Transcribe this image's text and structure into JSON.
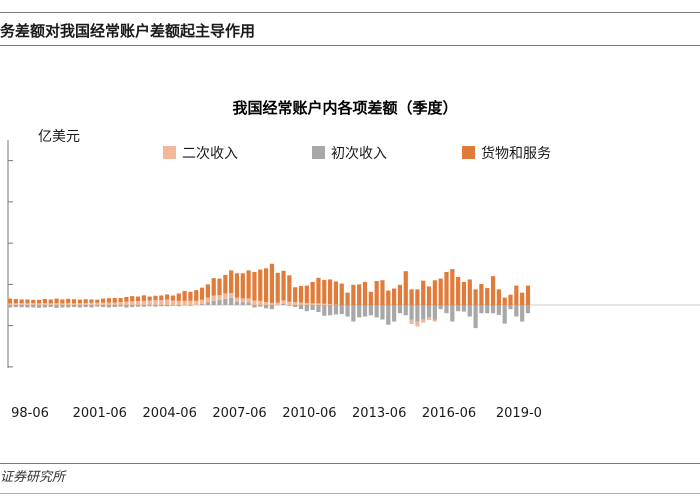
{
  "header": {
    "subtitle": "务差额对我国经常账户差额起主导作用"
  },
  "footer": {
    "source": "证券研究所"
  },
  "colors": {
    "secondary": "#f3b89a",
    "primary": "#a8a8a8",
    "goods": "#e07b39",
    "axis": "#7a7a7a"
  },
  "chart_data": {
    "type": "bar",
    "stacked": true,
    "title": "我国经常账户内各项差额（季度）",
    "ylabel": "亿美元",
    "xlabel": "",
    "ylim": [
      -1500,
      4000
    ],
    "grid": false,
    "legend": "top",
    "series_labels": [
      "二次收入",
      "初次收入",
      "货物和服务"
    ],
    "x_tick_labels": [
      "98-06",
      "2001-06",
      "2004-06",
      "2007-06",
      "2010-06",
      "2013-06",
      "2016-06",
      "2019-0"
    ],
    "x_tick_quarters": [
      0,
      12,
      24,
      36,
      48,
      60,
      72,
      84
    ],
    "first_quarter": "1998-06",
    "goods": [
      115,
      105,
      90,
      95,
      80,
      85,
      100,
      95,
      110,
      95,
      105,
      100,
      85,
      90,
      80,
      75,
      95,
      105,
      110,
      100,
      115,
      125,
      110,
      135,
      95,
      105,
      110,
      125,
      120,
      180,
      240,
      220,
      260,
      290,
      320,
      420,
      400,
      450,
      550,
      590,
      610,
      680,
      690,
      760,
      820,
      950,
      720,
      720,
      640,
      360,
      400,
      420,
      520,
      620,
      580,
      600,
      560,
      520,
      300,
      490,
      500,
      560,
      320,
      580,
      600,
      350,
      400,
      490,
      820,
      380,
      380,
      590,
      450,
      600,
      640,
      800,
      870,
      680,
      560,
      620,
      380,
      510,
      410,
      700,
      380,
      180,
      250,
      470,
      300,
      470
    ],
    "secondary": [
      40,
      40,
      45,
      40,
      45,
      40,
      45,
      40,
      45,
      40,
      45,
      40,
      45,
      50,
      55,
      55,
      60,
      60,
      60,
      70,
      80,
      90,
      95,
      100,
      110,
      120,
      120,
      130,
      110,
      100,
      100,
      100,
      100,
      100,
      120,
      130,
      120,
      130,
      120,
      100,
      90,
      100,
      110,
      100,
      70,
      50,
      60,
      80,
      80,
      70,
      60,
      50,
      40,
      40,
      30,
      20,
      10,
      0,
      0,
      0,
      0,
      0,
      0,
      0,
      0,
      0,
      0,
      0,
      0,
      -100,
      -120,
      -80,
      -60,
      -40,
      0,
      0,
      0,
      0,
      0,
      0,
      0,
      0,
      0,
      0,
      0,
      0,
      0,
      0,
      0,
      0
    ],
    "primary": [
      -60,
      -50,
      -55,
      -60,
      -60,
      -70,
      -60,
      -50,
      -70,
      -60,
      -60,
      -50,
      -60,
      -50,
      -60,
      -40,
      -50,
      -60,
      -50,
      -40,
      -60,
      -50,
      -40,
      -40,
      -30,
      -40,
      -30,
      -30,
      -20,
      -30,
      -10,
      -20,
      0,
      30,
      60,
      100,
      120,
      150,
      170,
      80,
      70,
      60,
      -60,
      -40,
      -80,
      -100,
      0,
      30,
      -20,
      -50,
      -100,
      -150,
      -120,
      -170,
      -260,
      -250,
      -230,
      -220,
      -280,
      -400,
      -300,
      -280,
      -250,
      -300,
      -350,
      -480,
      -400,
      -200,
      -250,
      -360,
      -400,
      -350,
      -300,
      -360,
      -100,
      -200,
      -400,
      -150,
      -160,
      -280,
      -560,
      -200,
      -200,
      -200,
      -240,
      -450,
      -100,
      -280,
      -400,
      -200
    ]
  }
}
